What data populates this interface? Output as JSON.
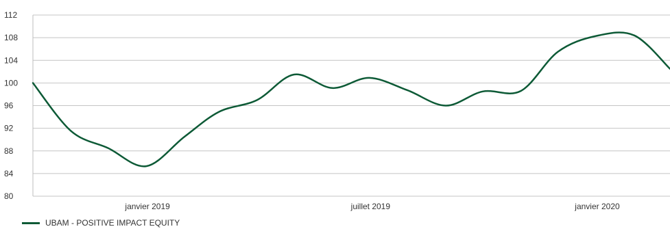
{
  "chart_data": {
    "type": "line",
    "x": [
      "2018-09-30",
      "2018-10-31",
      "2018-11-30",
      "2018-12-31",
      "2019-01-31",
      "2019-02-28",
      "2019-03-31",
      "2019-04-30",
      "2019-05-31",
      "2019-06-30",
      "2019-07-31",
      "2019-08-31",
      "2019-09-30",
      "2019-10-31",
      "2019-11-30",
      "2019-12-31",
      "2020-01-31",
      "2020-02-29"
    ],
    "series": [
      {
        "name": "UBAM - POSITIVE IMPACT EQUITY",
        "color": "#0d5a36",
        "values": [
          100,
          91.5,
          88.5,
          85.3,
          90.5,
          94.9,
          97.0,
          101.5,
          99.1,
          100.9,
          98.7,
          96.0,
          98.5,
          98.6,
          105.5,
          108.3,
          108.4,
          102.5
        ]
      }
    ],
    "ylim": [
      80,
      112
    ],
    "yticks": [
      80,
      84,
      88,
      92,
      96,
      100,
      104,
      108,
      112
    ],
    "xticks": [
      {
        "label": "janvier 2019",
        "x": "2019-01-01"
      },
      {
        "label": "juillet 2019",
        "x": "2019-07-01"
      },
      {
        "label": "janvier 2020",
        "x": "2020-01-01"
      }
    ],
    "grid": true,
    "legend": "bottom-left",
    "title": "",
    "xlabel": "",
    "ylabel": ""
  }
}
